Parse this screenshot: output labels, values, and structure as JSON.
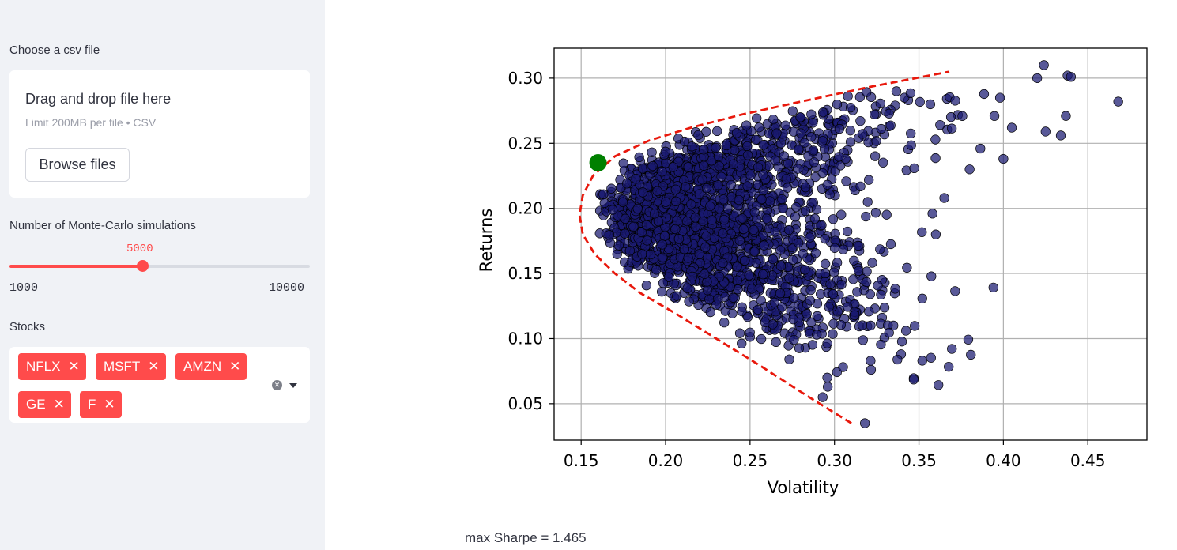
{
  "sidebar": {
    "upload": {
      "label": "Choose a csv file",
      "title": "Drag and drop file here",
      "limit": "Limit 200MB per file • CSV",
      "button": "Browse files"
    },
    "simulations": {
      "label": "Number of Monte-Carlo simulations",
      "value": "5000",
      "min": "1000",
      "max": "10000",
      "fraction": 0.444
    },
    "stocks": {
      "label": "Stocks",
      "tags": [
        "NFLX",
        "MSFT",
        "AMZN",
        "GE",
        "F"
      ],
      "remove_glyph": "✕",
      "clear_glyph": "✕"
    }
  },
  "main": {
    "sharpe_text": "max Sharpe = 1.465"
  },
  "chart_data": {
    "type": "scatter",
    "xlabel": "Volatility",
    "ylabel": "Returns",
    "xlim": [
      0.134,
      0.485
    ],
    "ylim": [
      0.022,
      0.323
    ],
    "xticks": [
      "0.15",
      "0.20",
      "0.25",
      "0.30",
      "0.35",
      "0.40",
      "0.45"
    ],
    "yticks": [
      "0.05",
      "0.10",
      "0.15",
      "0.20",
      "0.25",
      "0.30"
    ],
    "grid": true,
    "colors": {
      "points": "#191970",
      "frontier": "#e8180c",
      "max_sharpe": "#008000"
    },
    "max_sharpe_point": {
      "x": 0.16,
      "y": 0.235
    },
    "frontier": {
      "x": [
        0.31,
        0.285,
        0.255,
        0.23,
        0.205,
        0.185,
        0.17,
        0.158,
        0.151,
        0.149,
        0.151,
        0.157,
        0.17,
        0.19,
        0.215,
        0.245,
        0.28,
        0.32,
        0.368
      ],
      "y": [
        0.035,
        0.055,
        0.08,
        0.1,
        0.12,
        0.135,
        0.15,
        0.165,
        0.18,
        0.195,
        0.21,
        0.225,
        0.24,
        0.252,
        0.262,
        0.272,
        0.282,
        0.293,
        0.305
      ]
    },
    "notable_points": {
      "x": [
        0.318,
        0.424,
        0.42,
        0.438,
        0.44,
        0.468,
        0.437,
        0.425,
        0.434,
        0.405,
        0.4,
        0.398,
        0.38,
        0.365,
        0.36,
        0.358,
        0.293,
        0.296,
        0.276
      ],
      "y": [
        0.035,
        0.31,
        0.3,
        0.302,
        0.301,
        0.282,
        0.271,
        0.259,
        0.256,
        0.262,
        0.238,
        0.285,
        0.23,
        0.208,
        0.18,
        0.196,
        0.055,
        0.063,
        0.099
      ]
    },
    "cloud": {
      "count": 5000,
      "volatility_range": [
        0.16,
        0.38
      ],
      "returns_range": [
        0.05,
        0.29
      ]
    }
  }
}
